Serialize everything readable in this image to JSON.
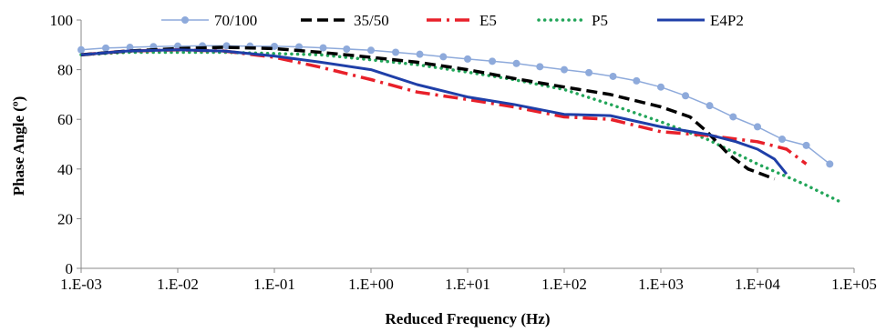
{
  "chart_data": {
    "type": "line",
    "title": "",
    "xlabel": "Reduced Frequency (Hz)",
    "ylabel": "Phase Angle (º)",
    "xscale": "log",
    "xlim": [
      0.001,
      100000
    ],
    "ylim": [
      0,
      100
    ],
    "x_ticks": [
      0.001,
      0.01,
      0.1,
      1,
      10,
      100,
      1000,
      10000,
      100000
    ],
    "x_tick_labels": [
      "1.E-03",
      "1.E-02",
      "1.E-01",
      "1.E+00",
      "1.E+01",
      "1.E+02",
      "1.E+03",
      "1.E+04",
      "1.E+05"
    ],
    "y_ticks": [
      0,
      20,
      40,
      60,
      80,
      100
    ],
    "y_tick_labels": [
      "0",
      "20",
      "40",
      "60",
      "80",
      "100"
    ],
    "grid": false,
    "legend_position": "top",
    "series": [
      {
        "name": "70/100",
        "color": "#8eaadb",
        "style": "solid-markers",
        "x": [
          0.001,
          0.0018,
          0.0032,
          0.0056,
          0.01,
          0.018,
          0.032,
          0.056,
          0.1,
          0.18,
          0.32,
          0.56,
          1,
          1.8,
          3.2,
          5.6,
          10,
          18,
          32,
          56,
          100,
          180,
          320,
          560,
          1000,
          1800,
          3200,
          5600,
          10000,
          18000,
          32000,
          56000
        ],
        "y": [
          88,
          88.7,
          89,
          89.3,
          89.5,
          89.6,
          89.6,
          89.5,
          89.4,
          89.2,
          88.8,
          88.3,
          87.8,
          87,
          86.2,
          85.2,
          84.3,
          83.4,
          82.5,
          81.2,
          80,
          78.8,
          77.3,
          75.5,
          73,
          69.5,
          65.5,
          61,
          57,
          52,
          49.5,
          42
        ]
      },
      {
        "name": "35/50",
        "color": "#000000",
        "style": "dashed",
        "x": [
          0.001,
          0.003,
          0.01,
          0.03,
          0.1,
          0.3,
          1,
          3,
          10,
          30,
          100,
          300,
          1000,
          2000,
          3000,
          5000,
          8000,
          15000
        ],
        "y": [
          86,
          87.5,
          88.5,
          89,
          88.5,
          87,
          85,
          83,
          80,
          76.5,
          73,
          70,
          65,
          61,
          55,
          46,
          40,
          36
        ]
      },
      {
        "name": "E5",
        "color": "#e8202a",
        "style": "dash-dot",
        "x": [
          0.001,
          0.003,
          0.01,
          0.03,
          0.1,
          0.3,
          1,
          3,
          10,
          30,
          100,
          300,
          1000,
          3000,
          10000,
          20000,
          32000
        ],
        "y": [
          86,
          87.5,
          88,
          87.5,
          85,
          81,
          76,
          71,
          68,
          65,
          61,
          60,
          55,
          53.5,
          51,
          48,
          42
        ]
      },
      {
        "name": "P5",
        "color": "#22a559",
        "style": "dotted",
        "x": [
          0.001,
          0.003,
          0.01,
          0.03,
          0.1,
          0.3,
          1,
          3,
          10,
          30,
          100,
          300,
          1000,
          3000,
          10000,
          30000,
          70000
        ],
        "y": [
          86,
          87,
          87,
          87,
          86.5,
          86,
          84,
          82,
          79,
          76,
          72,
          66,
          59,
          52,
          42,
          34,
          27
        ]
      },
      {
        "name": "E4P2",
        "color": "#1f3fa8",
        "style": "solid",
        "x": [
          0.001,
          0.003,
          0.01,
          0.03,
          0.1,
          0.3,
          1,
          3,
          10,
          30,
          100,
          300,
          1000,
          3000,
          6000,
          10000,
          15000,
          20000
        ],
        "y": [
          86,
          87.5,
          88,
          87.5,
          85.5,
          83,
          80,
          74,
          69,
          66,
          62,
          61.5,
          57,
          54,
          51,
          48,
          44,
          38
        ]
      }
    ]
  }
}
